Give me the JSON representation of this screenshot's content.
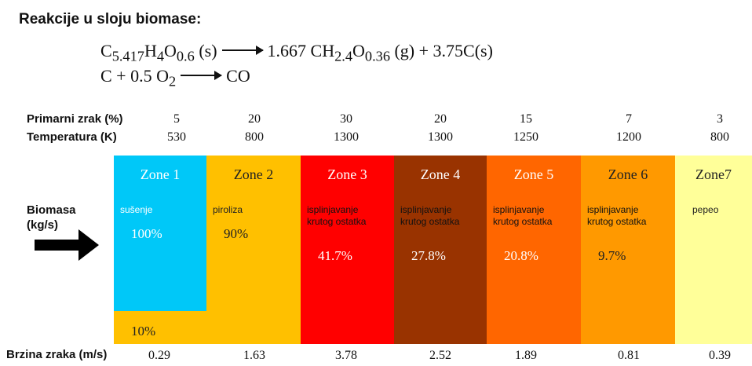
{
  "title": "Reakcije u sloju biomase:",
  "equations": {
    "eq1": {
      "lhs_main": "C",
      "lhs_c_sub": "5.417",
      "lhs_h": "H",
      "lhs_h_sub": "4",
      "lhs_o": "O",
      "lhs_o_sub": "0.6",
      "lhs_state": " (s)",
      "rhs_coef": "1.667 CH",
      "rhs_h_sub": "2.4",
      "rhs_o": "O",
      "rhs_o_sub": "0.36",
      "rhs_rest": " (g) + 3.75C(s)"
    },
    "eq2": {
      "lhs": "C + 0.5 O",
      "lhs_sub": "2",
      "rhs": "CO"
    }
  },
  "rows": {
    "primary_air_label": "Primarni zrak (%)",
    "temperature_label": "Temperatura (K)",
    "biomass_label_1": "Biomasa",
    "biomass_label_2": "(kg/s)",
    "air_speed_label": "Brzina zraka (m/s)"
  },
  "zones": [
    {
      "name": "Zone 1",
      "desc1": "sušenje",
      "desc2": "",
      "pct": "100%",
      "primary_air": "5",
      "temperature": "530",
      "air_speed": "0.29",
      "color": "#00C8F8",
      "text_color": "#ffffff"
    },
    {
      "name": "Zone 2",
      "desc1": "piroliza",
      "desc2": "",
      "pct": "90%",
      "primary_air": "20",
      "temperature": "800",
      "air_speed": "1.63",
      "color": "#FFC000",
      "text_color": "#222222"
    },
    {
      "name": "Zone 3",
      "desc1": "isplinjavanje",
      "desc2": "krutog ostatka",
      "pct": "41.7%",
      "primary_air": "30",
      "temperature": "1300",
      "air_speed": "3.78",
      "color": "#FF0000",
      "text_color": "#ffffff"
    },
    {
      "name": "Zone 4",
      "desc1": "isplinjavanje",
      "desc2": "krutog ostatka",
      "pct": "27.8%",
      "primary_air": "20",
      "temperature": "1300",
      "air_speed": "2.52",
      "color": "#993300",
      "text_color": "#ffffff"
    },
    {
      "name": "Zone 5",
      "desc1": "isplinjavanje",
      "desc2": "krutog ostatka",
      "pct": "20.8%",
      "primary_air": "15",
      "temperature": "1250",
      "air_speed": "1.89",
      "color": "#FF6600",
      "text_color": "#ffffff"
    },
    {
      "name": "Zone 6",
      "desc1": "isplinjavanje",
      "desc2": "krutog ostatka",
      "pct": "9.7%",
      "primary_air": "7",
      "temperature": "1200",
      "air_speed": "0.81",
      "color": "#FF9900",
      "text_color": "#222222"
    },
    {
      "name": "Zone7",
      "desc1": "pepeo",
      "desc2": "",
      "pct": "",
      "primary_air": "3",
      "temperature": "800",
      "air_speed": "0.39",
      "color": "#FFFF99",
      "text_color": "#222222"
    }
  ],
  "zone1_remainder": {
    "pct": "10%",
    "color": "#FFC000"
  }
}
